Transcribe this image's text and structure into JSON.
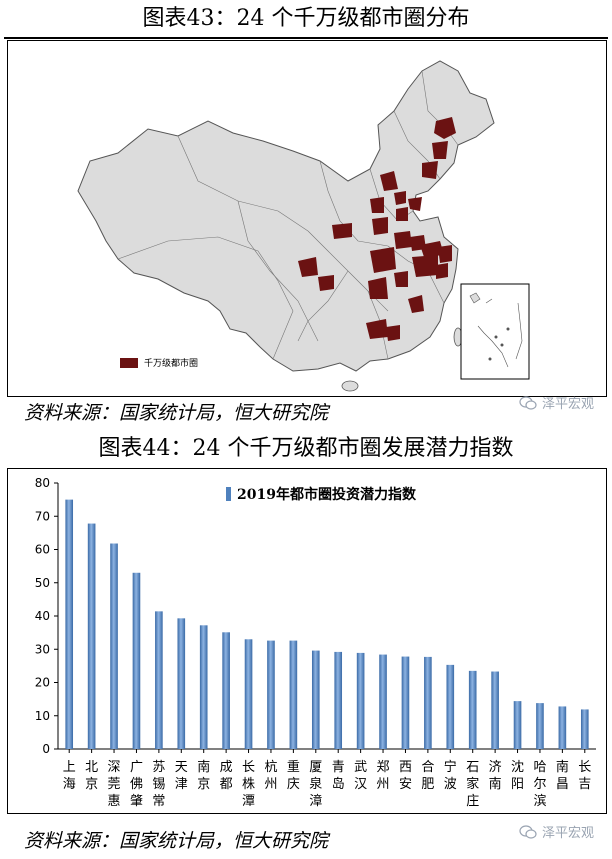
{
  "figure1": {
    "title": "图表43：24 个千万级都市圈分布",
    "legend_label": "千万级都市圈",
    "source": "资料来源：国家统计局，恒大研究院",
    "watermark": "泽平宏观",
    "map_fill": "#dcdcdc",
    "highlight_color": "#6b1212",
    "border_color": "#555555"
  },
  "figure2": {
    "title": "图表44：24 个千万级都市圈发展潜力指数",
    "source": "资料来源：国家统计局，恒大研究院",
    "watermark": "泽平宏观"
  },
  "chart_data": {
    "type": "bar",
    "series": [
      {
        "name": "2019年都市圈投资潜力指数",
        "color": "#4f81bd",
        "values": [
          75,
          67.8,
          61.8,
          53,
          41.4,
          39.3,
          37.2,
          35.1,
          33,
          32.6,
          32.6,
          29.6,
          29.2,
          28.9,
          28.4,
          27.8,
          27.7,
          25.3,
          23.5,
          23.3,
          14.4,
          13.8,
          12.8,
          11.9
        ]
      }
    ],
    "categories": [
      "上海",
      "北京",
      "深莞惠",
      "广佛肇",
      "苏锡常",
      "天津",
      "南京",
      "成都",
      "长株潭",
      "杭州",
      "重庆",
      "厦泉漳",
      "青岛",
      "武汉",
      "郑州",
      "西安",
      "合肥",
      "宁波",
      "石家庄",
      "济南",
      "沈阳",
      "哈尔滨",
      "南昌",
      "长吉"
    ],
    "ylim": [
      0,
      80
    ],
    "yticks": [
      "0",
      "10",
      "20",
      "30",
      "40",
      "50",
      "60",
      "70",
      "80"
    ],
    "grid": false,
    "legend_position": "top"
  }
}
